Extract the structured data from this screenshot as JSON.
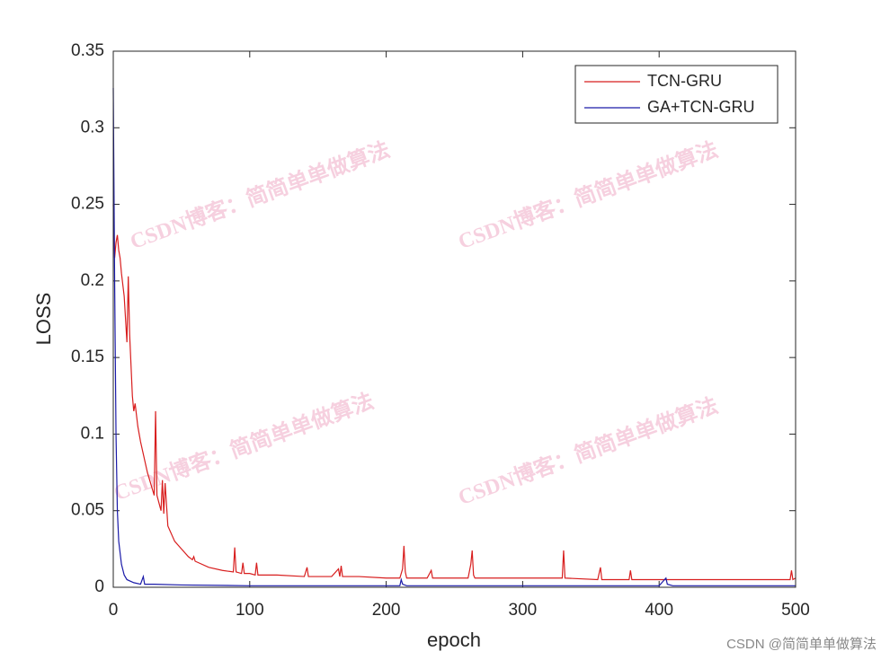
{
  "chart_data": {
    "type": "line",
    "xlabel": "epoch",
    "ylabel": "LOSS",
    "xlim": [
      0,
      500
    ],
    "ylim": [
      0,
      0.35
    ],
    "xticks": [
      0,
      100,
      200,
      300,
      400,
      500
    ],
    "yticks": [
      0,
      0.05,
      0.1,
      0.15,
      0.2,
      0.25,
      0.3,
      0.35
    ],
    "legend": "upper right",
    "series": [
      {
        "name": "TCN-GRU",
        "color": "#d81e1e",
        "x": [
          0,
          1,
          2,
          3,
          4,
          5,
          6,
          8,
          10,
          11,
          12,
          14,
          15,
          16,
          18,
          20,
          25,
          30,
          31,
          32,
          35,
          36,
          37,
          38,
          40,
          45,
          50,
          55,
          58,
          59,
          60,
          70,
          80,
          88,
          89,
          90,
          94,
          95,
          96,
          100,
          104,
          105,
          106,
          120,
          140,
          142,
          143,
          160,
          165,
          166,
          167,
          168,
          180,
          200,
          210,
          212,
          213,
          214,
          215,
          230,
          233,
          234,
          240,
          260,
          262,
          263,
          264,
          265,
          300,
          329,
          330,
          331,
          355,
          357,
          358,
          378,
          379,
          380,
          400,
          450,
          480,
          496,
          497,
          498,
          500
        ],
        "values": [
          0.25,
          0.215,
          0.225,
          0.23,
          0.22,
          0.215,
          0.205,
          0.19,
          0.16,
          0.203,
          0.165,
          0.125,
          0.115,
          0.12,
          0.105,
          0.095,
          0.075,
          0.06,
          0.115,
          0.06,
          0.05,
          0.07,
          0.048,
          0.068,
          0.04,
          0.03,
          0.025,
          0.02,
          0.018,
          0.02,
          0.017,
          0.013,
          0.011,
          0.01,
          0.026,
          0.01,
          0.009,
          0.016,
          0.009,
          0.009,
          0.008,
          0.016,
          0.008,
          0.008,
          0.007,
          0.013,
          0.007,
          0.007,
          0.012,
          0.007,
          0.014,
          0.007,
          0.007,
          0.006,
          0.006,
          0.012,
          0.027,
          0.01,
          0.006,
          0.006,
          0.011,
          0.006,
          0.006,
          0.006,
          0.015,
          0.024,
          0.008,
          0.006,
          0.006,
          0.006,
          0.024,
          0.006,
          0.005,
          0.013,
          0.005,
          0.005,
          0.011,
          0.005,
          0.005,
          0.005,
          0.005,
          0.005,
          0.011,
          0.005,
          0.006
        ]
      },
      {
        "name": "GA+TCN-GRU",
        "color": "#1a1aa8",
        "x": [
          0,
          1,
          2,
          3,
          4,
          6,
          8,
          10,
          15,
          20,
          22,
          23,
          30,
          50,
          100,
          200,
          210,
          211,
          212,
          215,
          300,
          400,
          405,
          406,
          410,
          500
        ],
        "values": [
          0.326,
          0.2,
          0.1,
          0.05,
          0.03,
          0.015,
          0.008,
          0.005,
          0.003,
          0.002,
          0.007,
          0.002,
          0.002,
          0.0015,
          0.001,
          0.001,
          0.001,
          0.005,
          0.002,
          0.001,
          0.001,
          0.001,
          0.006,
          0.002,
          0.001,
          0.001
        ]
      }
    ]
  },
  "watermark": "CSDN博客：简简单单做算法",
  "footer": "CSDN @简简单单做算法"
}
